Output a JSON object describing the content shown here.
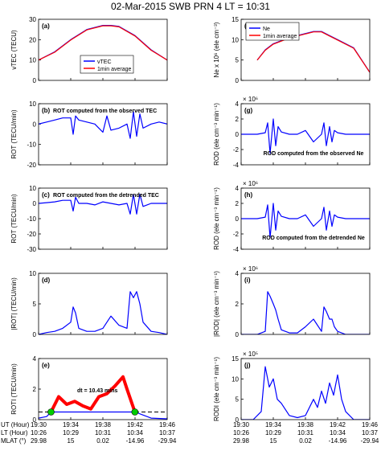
{
  "title": "02-Mar-2015 SWB  PRN 4  LT = 10:31",
  "colors": {
    "blue": "#0000ff",
    "red": "#ff0000",
    "green": "#00cc00",
    "axis": "#000000"
  },
  "x_axis": {
    "range_minutes": [
      0,
      16
    ],
    "rows": [
      {
        "label": "UT (Hour)",
        "ticks": [
          "19:30",
          "19:34",
          "19:38",
          "19:42",
          "19:46"
        ]
      },
      {
        "label": "LT (Hour)",
        "ticks": [
          "10:26",
          "10:29",
          "10:31",
          "10:34",
          "10:37"
        ]
      },
      {
        "label": "MLAT (°)",
        "ticks": [
          "29.98",
          "15",
          "0.02",
          "-14.96",
          "-29.94"
        ]
      }
    ],
    "tick_minutes": [
      0,
      4,
      8,
      12,
      16
    ]
  },
  "chart_data": [
    {
      "id": "a",
      "panel_label": "(a)",
      "type": "line",
      "ylabel": "vTEC (TECU)",
      "ylim": [
        0,
        30
      ],
      "yticks": [
        "0",
        "10",
        "20",
        "30"
      ],
      "ytick_values": [
        0,
        10,
        20,
        30
      ],
      "legend": [
        "vTEC",
        "1min average"
      ],
      "legend_position": "center",
      "series": [
        {
          "name": "vTEC",
          "color": "blue",
          "x": [
            0,
            2,
            4,
            6,
            8,
            9,
            10,
            12,
            14,
            16
          ],
          "y": [
            10,
            14,
            20,
            25,
            27,
            27,
            26.5,
            22,
            15,
            10
          ]
        },
        {
          "name": "1min average",
          "color": "red",
          "x": [
            0,
            2,
            4,
            6,
            8,
            9,
            10,
            12,
            14,
            16
          ],
          "y": [
            10,
            13.8,
            19.8,
            24.8,
            26.8,
            26.8,
            26.3,
            21.8,
            14.8,
            10
          ]
        }
      ]
    },
    {
      "id": "b",
      "panel_label": "(b)",
      "annotation": "ROT computed from the observed TEC",
      "type": "line",
      "ylabel": "ROT (TECU/min)",
      "ylim": [
        -20,
        10
      ],
      "yticks": [
        "-20",
        "-10",
        "0",
        "10"
      ],
      "ytick_values": [
        -20,
        -10,
        0,
        10
      ],
      "series": [
        {
          "color": "blue",
          "x": [
            0,
            1,
            2,
            3,
            4,
            4.3,
            4.6,
            5,
            6,
            7,
            7.5,
            8,
            8.5,
            9,
            10,
            11,
            11.4,
            11.8,
            12.2,
            12.6,
            13,
            14,
            15,
            16
          ],
          "y": [
            0,
            1,
            2,
            3,
            3,
            -5,
            4,
            2,
            1,
            0,
            -2,
            -4,
            4,
            -3,
            -2,
            0,
            -7,
            6,
            -6,
            5,
            -2,
            0,
            1,
            0
          ]
        }
      ]
    },
    {
      "id": "c",
      "panel_label": "(c)",
      "annotation": "ROT computed from the detrended TEC",
      "type": "line",
      "ylabel": "ROT (TECU/min)",
      "ylim": [
        -30,
        10
      ],
      "yticks": [
        "-30",
        "-20",
        "-10",
        "0",
        "10"
      ],
      "ytick_values": [
        -30,
        -20,
        -10,
        0,
        10
      ],
      "series": [
        {
          "color": "blue",
          "x": [
            0,
            1,
            2,
            3,
            4,
            4.3,
            4.6,
            5,
            6,
            7,
            8,
            9,
            10,
            11,
            11.4,
            11.8,
            12.2,
            12.6,
            13,
            14,
            15,
            16
          ],
          "y": [
            0,
            0.5,
            1,
            2,
            2,
            -5,
            4,
            0,
            0,
            -1,
            1,
            0,
            -1,
            0,
            -7,
            6,
            -7,
            6,
            -2,
            0,
            0,
            0
          ]
        }
      ]
    },
    {
      "id": "d",
      "panel_label": "(d)",
      "type": "line",
      "ylabel": "|ROT| (TECU/min)",
      "ylim": [
        0,
        10
      ],
      "yticks": [
        "0",
        "5",
        "10"
      ],
      "ytick_values": [
        0,
        5,
        10
      ],
      "series": [
        {
          "color": "blue",
          "x": [
            0,
            1,
            2,
            3,
            4,
            4.3,
            4.6,
            5,
            6,
            7,
            8,
            9,
            10,
            11,
            11.4,
            11.8,
            12.2,
            12.6,
            13,
            14,
            15,
            16
          ],
          "y": [
            0,
            0.3,
            0.5,
            1,
            2,
            4.5,
            3.5,
            1,
            0.5,
            0.5,
            1,
            3,
            1.5,
            1,
            7,
            6,
            7,
            5,
            2,
            0.5,
            0.3,
            0
          ]
        }
      ]
    },
    {
      "id": "e",
      "panel_label": "(e)",
      "annotation": "dt = 10.43 mins",
      "type": "line",
      "ylabel": "ROTI (TECU/min)",
      "ylim": [
        0,
        4
      ],
      "yticks": [
        "0",
        "2",
        "4"
      ],
      "ytick_values": [
        0,
        2,
        4
      ],
      "threshold": 0.5,
      "markers_x": [
        1.55,
        11.98
      ],
      "series": [
        {
          "name": "ROTI",
          "color": "blue",
          "x": [
            0,
            1,
            1.55,
            12,
            13,
            14,
            16
          ],
          "y": [
            0.1,
            0.2,
            0.5,
            0.5,
            0.3,
            0.1,
            0.05
          ]
        },
        {
          "name": "ROTI above threshold",
          "color": "red",
          "x": [
            1.55,
            2.5,
            3.5,
            4.5,
            5.5,
            6.5,
            7.5,
            8.5,
            9.5,
            10.5,
            11,
            11.98
          ],
          "y": [
            0.5,
            1.5,
            1.0,
            1.2,
            0.9,
            0.7,
            1.5,
            1.7,
            2.2,
            2.8,
            2.0,
            0.5
          ]
        }
      ]
    },
    {
      "id": "f",
      "panel_label": "(f)",
      "type": "line",
      "ylabel": "Ne x 10⁶ (ele cm⁻³)",
      "ylim": [
        0,
        15
      ],
      "yticks": [
        "0",
        "5",
        "10",
        "15"
      ],
      "ytick_values": [
        0,
        5,
        10,
        15
      ],
      "legend": [
        "Ne",
        "1min average"
      ],
      "legend_position": "top-left",
      "series": [
        {
          "name": "Ne",
          "color": "blue",
          "x": [
            2,
            3,
            4,
            6,
            8,
            9,
            10,
            11,
            12,
            14,
            16
          ],
          "y": [
            5,
            7.5,
            9,
            10.5,
            11.5,
            12,
            12,
            11,
            10,
            8,
            2
          ]
        },
        {
          "name": "1min average",
          "color": "red",
          "x": [
            2,
            3,
            4,
            6,
            8,
            9,
            10,
            11,
            12,
            14,
            16
          ],
          "y": [
            5,
            7.4,
            8.9,
            10.4,
            11.4,
            11.9,
            11.9,
            10.9,
            9.9,
            7.9,
            2
          ]
        }
      ]
    },
    {
      "id": "g",
      "panel_label": "(g)",
      "annotation": "ROD computed from the observed Ne",
      "type": "line",
      "ylabel": "ROD (ele cm⁻³ min⁻¹)",
      "ylim": [
        -4,
        4
      ],
      "yticks": [
        "-4",
        "-2",
        "0",
        "2",
        "4"
      ],
      "ytick_values": [
        -4,
        -2,
        0,
        2,
        4
      ],
      "yexponent": "× 10⁶",
      "series": [
        {
          "color": "blue",
          "x": [
            0,
            2,
            3,
            3.3,
            3.6,
            4,
            4.3,
            4.6,
            5,
            6,
            7,
            8,
            9,
            10,
            10.3,
            10.6,
            11,
            11.3,
            11.6,
            12,
            13,
            14,
            16
          ],
          "y": [
            0,
            0,
            0.2,
            1.5,
            -2.5,
            2,
            -1.5,
            1,
            0.3,
            0,
            0,
            0.5,
            -1,
            0,
            1.5,
            -1.5,
            1,
            -1,
            0.5,
            0.2,
            0,
            0,
            0
          ]
        }
      ]
    },
    {
      "id": "h",
      "panel_label": "(h)",
      "annotation": "ROD computed from the detrended Ne",
      "type": "line",
      "ylabel": "ROD (ele cm⁻³ min⁻¹)",
      "ylim": [
        -4,
        4
      ],
      "yticks": [
        "-4",
        "-2",
        "0",
        "2",
        "4"
      ],
      "ytick_values": [
        -4,
        -2,
        0,
        2,
        4
      ],
      "yexponent": "× 10⁶",
      "series": [
        {
          "color": "blue",
          "x": [
            0,
            2,
            3,
            3.3,
            3.6,
            4,
            4.3,
            4.6,
            5,
            6,
            7,
            8,
            9,
            10,
            10.3,
            10.6,
            11,
            11.3,
            11.6,
            12,
            13,
            14,
            16
          ],
          "y": [
            0,
            0,
            0.2,
            1.8,
            -2.5,
            2,
            -1.5,
            1,
            0.3,
            0,
            0,
            0.5,
            -1,
            0,
            1.5,
            -1.5,
            1,
            -1,
            0.5,
            0.2,
            0,
            0,
            0
          ]
        }
      ]
    },
    {
      "id": "i",
      "panel_label": "(i)",
      "type": "line",
      "ylabel": "|ROD| (ele cm⁻³ min⁻¹)",
      "ylim": [
        0,
        4
      ],
      "yticks": [
        "0",
        "2",
        "4"
      ],
      "ytick_values": [
        0,
        2,
        4
      ],
      "yexponent": "× 10⁶",
      "series": [
        {
          "color": "blue",
          "x": [
            0,
            2,
            3,
            3.3,
            3.6,
            4,
            4.3,
            4.6,
            5,
            6,
            7,
            8,
            9,
            10,
            10.3,
            10.6,
            11,
            11.3,
            11.6,
            12,
            13,
            14,
            16
          ],
          "y": [
            0,
            0,
            0.2,
            2.8,
            2.5,
            2.0,
            1.6,
            1.0,
            0.3,
            0.1,
            0.1,
            0.5,
            1.0,
            0.2,
            1.8,
            1.5,
            1.0,
            1.0,
            0.5,
            0.2,
            0,
            0,
            0
          ]
        }
      ]
    },
    {
      "id": "j",
      "panel_label": "(j)",
      "type": "line",
      "ylabel": "RODI (ele cm⁻³ min⁻¹)",
      "ylim": [
        0,
        15
      ],
      "yticks": [
        "0",
        "5",
        "10",
        "15"
      ],
      "ytick_values": [
        0,
        5,
        10,
        15
      ],
      "yexponent": "× 10⁵",
      "series": [
        {
          "color": "blue",
          "x": [
            0,
            1.5,
            2.5,
            3,
            3.5,
            4,
            4.5,
            5,
            6,
            7,
            8,
            9,
            9.5,
            10,
            10.5,
            11,
            11.5,
            12,
            12.5,
            13,
            14,
            16
          ],
          "y": [
            0,
            0,
            2,
            13,
            8,
            10,
            5,
            4,
            1,
            0.5,
            1,
            5,
            3,
            7,
            4,
            9,
            6,
            11,
            5,
            2,
            0,
            0
          ]
        }
      ]
    }
  ]
}
